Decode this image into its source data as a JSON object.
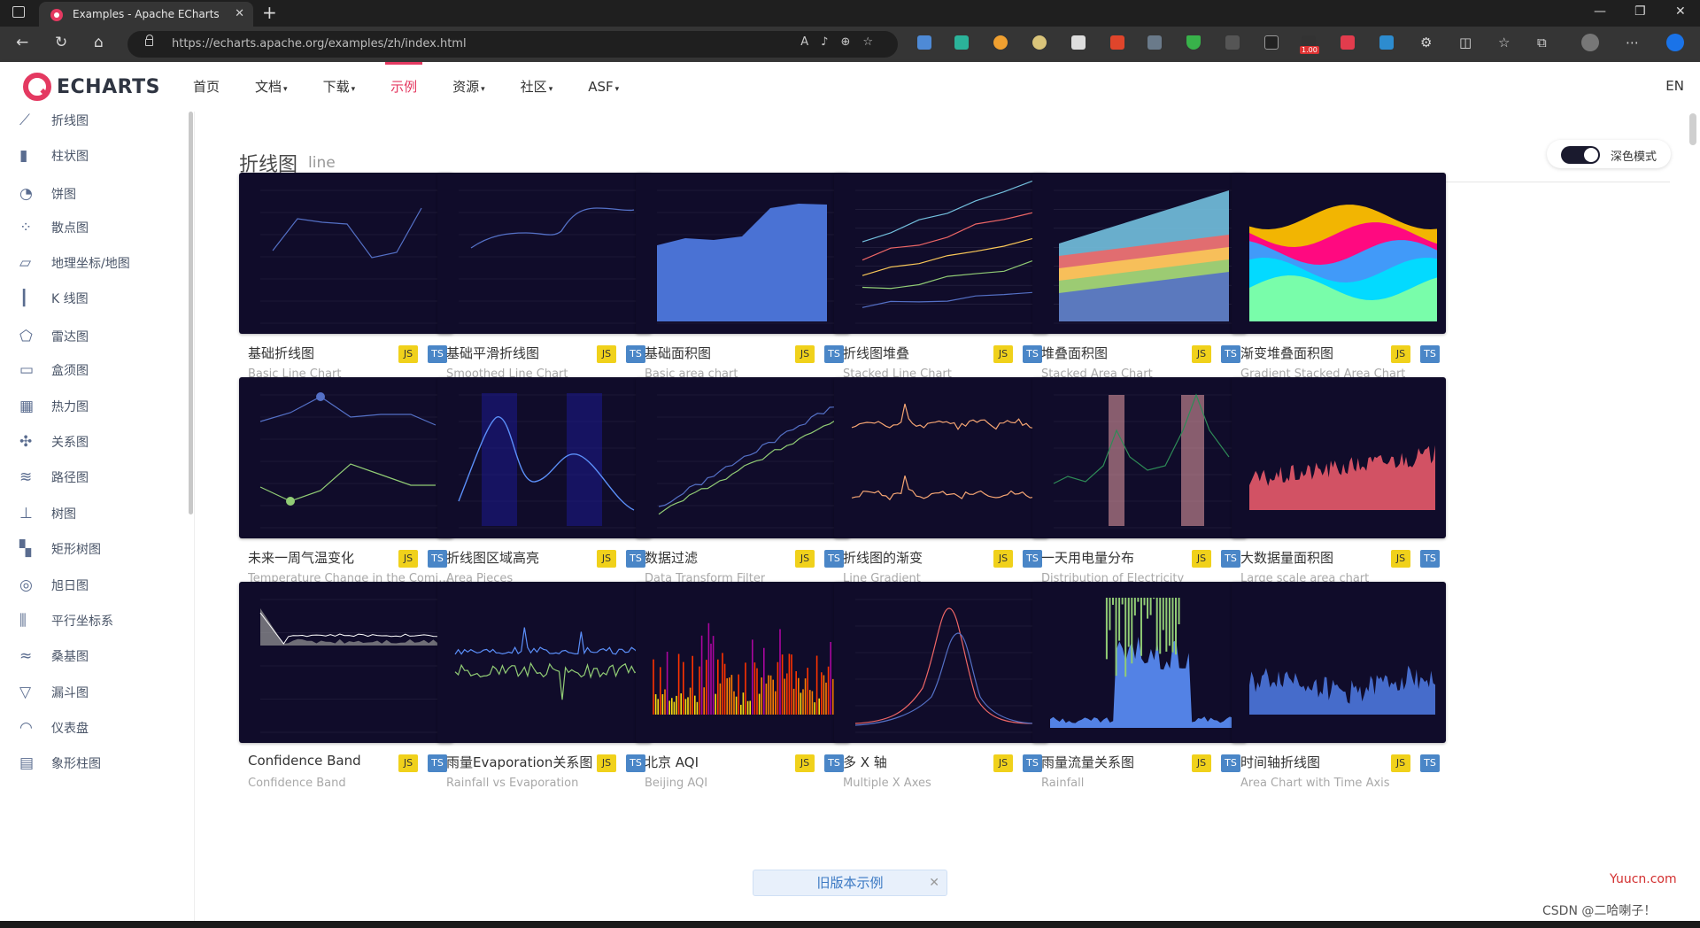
{
  "browser": {
    "tab_title": "Examples - Apache ECharts",
    "url": "https://echarts.apache.org/examples/zh/index.html",
    "ext_badge": "1.00"
  },
  "header": {
    "logo_text": "ECHARTS",
    "nav": [
      {
        "label": "首页",
        "caret": ""
      },
      {
        "label": "文档",
        "caret": "▾"
      },
      {
        "label": "下载",
        "caret": "▾"
      },
      {
        "label": "示例",
        "caret": ""
      },
      {
        "label": "资源",
        "caret": "▾"
      },
      {
        "label": "社区",
        "caret": "▾"
      },
      {
        "label": "ASF",
        "caret": "▾"
      }
    ],
    "lang": "EN"
  },
  "sidebar": {
    "items": [
      {
        "label": "折线图",
        "icon": "line-chart-icon"
      },
      {
        "label": "柱状图",
        "icon": "bar-chart-icon"
      },
      {
        "label": "饼图",
        "icon": "pie-chart-icon"
      },
      {
        "label": "散点图",
        "icon": "scatter-chart-icon"
      },
      {
        "label": "地理坐标/地图",
        "icon": "map-icon"
      },
      {
        "label": "K 线图",
        "icon": "candlestick-icon"
      },
      {
        "label": "雷达图",
        "icon": "radar-icon"
      },
      {
        "label": "盒须图",
        "icon": "boxplot-icon"
      },
      {
        "label": "热力图",
        "icon": "heatmap-icon"
      },
      {
        "label": "关系图",
        "icon": "graph-icon"
      },
      {
        "label": "路径图",
        "icon": "lines-icon"
      },
      {
        "label": "树图",
        "icon": "tree-icon"
      },
      {
        "label": "矩形树图",
        "icon": "treemap-icon"
      },
      {
        "label": "旭日图",
        "icon": "sunburst-icon"
      },
      {
        "label": "平行坐标系",
        "icon": "parallel-icon"
      },
      {
        "label": "桑基图",
        "icon": "sankey-icon"
      },
      {
        "label": "漏斗图",
        "icon": "funnel-icon"
      },
      {
        "label": "仪表盘",
        "icon": "gauge-icon"
      },
      {
        "label": "象形柱图",
        "icon": "pictorial-bar-icon"
      }
    ]
  },
  "main": {
    "section_title": "折线图",
    "section_sub": "line",
    "dark_mode_label": "深色模式",
    "dark_mode_on": true,
    "badge_js": "JS",
    "badge_ts": "TS",
    "cards": [
      {
        "title": "基础折线图",
        "sub": "Basic Line Chart",
        "kind": "line"
      },
      {
        "title": "基础平滑折线图",
        "sub": "Smoothed Line Chart",
        "kind": "smooth"
      },
      {
        "title": "基础面积图",
        "sub": "Basic area chart",
        "kind": "area"
      },
      {
        "title": "折线图堆叠",
        "sub": "Stacked Line Chart",
        "kind": "stacked-line"
      },
      {
        "title": "堆叠面积图",
        "sub": "Stacked Area Chart",
        "kind": "stacked-area"
      },
      {
        "title": "渐变堆叠面积图",
        "sub": "Gradient Stacked Area Chart",
        "kind": "gradient-stacked"
      },
      {
        "title": "未来一周气温变化",
        "sub": "Temperature Change in the Coming Week",
        "kind": "temperature"
      },
      {
        "title": "折线图区域高亮",
        "sub": "Area Pieces",
        "kind": "pieces"
      },
      {
        "title": "数据过滤",
        "sub": "Data Transform Filter",
        "kind": "filter"
      },
      {
        "title": "折线图的渐变",
        "sub": "Line Gradient",
        "kind": "line-gradient"
      },
      {
        "title": "一天用电量分布",
        "sub": "Distribution of Electricity",
        "kind": "electricity"
      },
      {
        "title": "大数据量面积图",
        "sub": "Large scale area chart",
        "kind": "large-area"
      },
      {
        "title": "Confidence Band",
        "sub": "Confidence Band",
        "kind": "confidence"
      },
      {
        "title": "雨量Evaporation关系图",
        "sub": "Rainfall vs Evaporation",
        "kind": "rain-evap"
      },
      {
        "title": "北京 AQI",
        "sub": "Beijing AQI",
        "kind": "aqi"
      },
      {
        "title": "多 X 轴",
        "sub": "Multiple X Axes",
        "kind": "multi-x"
      },
      {
        "title": "雨量流量关系图",
        "sub": "Rainfall",
        "kind": "rainfall-flow"
      },
      {
        "title": "时间轴折线图",
        "sub": "Area Chart with Time Axis",
        "kind": "time-axis"
      }
    ],
    "legacy_banner": "旧版本示例"
  },
  "watermarks": {
    "site": "Yuucn.com",
    "author": "CSDN @二哈喇子！"
  }
}
